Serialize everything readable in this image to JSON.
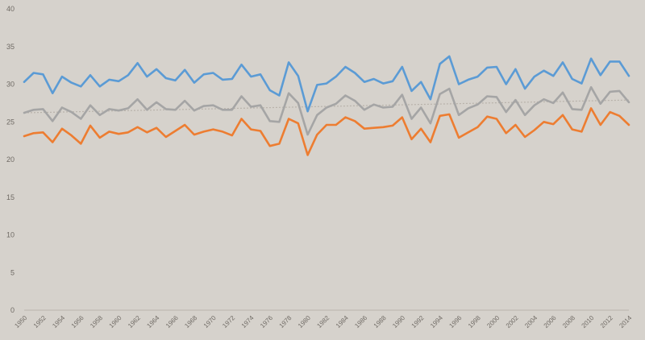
{
  "colors": {
    "background": "#d6d2cc",
    "axis": "#b9b4ad",
    "tick_text": "#6f6a64",
    "trend": "#b8b2aa"
  },
  "chart_data": {
    "type": "line",
    "title": "",
    "xlabel": "",
    "ylabel": "",
    "ylim": [
      0,
      40
    ],
    "y_ticks": [
      0,
      5,
      10,
      15,
      20,
      25,
      30,
      35,
      40
    ],
    "x_ticks": [
      1950,
      1952,
      1954,
      1956,
      1958,
      1960,
      1962,
      1964,
      1966,
      1968,
      1970,
      1972,
      1974,
      1976,
      1978,
      1980,
      1982,
      1984,
      1986,
      1988,
      1990,
      1992,
      1994,
      1996,
      1998,
      2000,
      2002,
      2004,
      2006,
      2008,
      2010,
      2012,
      2014
    ],
    "grid": false,
    "legend": "none",
    "x": [
      1950,
      1951,
      1952,
      1953,
      1954,
      1955,
      1956,
      1957,
      1958,
      1959,
      1960,
      1961,
      1962,
      1963,
      1964,
      1965,
      1966,
      1967,
      1968,
      1969,
      1970,
      1971,
      1972,
      1973,
      1974,
      1975,
      1976,
      1977,
      1978,
      1979,
      1980,
      1981,
      1982,
      1983,
      1984,
      1985,
      1986,
      1987,
      1988,
      1989,
      1990,
      1991,
      1992,
      1993,
      1994,
      1995,
      1996,
      1997,
      1998,
      1999,
      2000,
      2001,
      2002,
      2003,
      2004,
      2005,
      2006,
      2007,
      2008,
      2009,
      2010,
      2011,
      2012,
      2013,
      2014
    ],
    "series": [
      {
        "color": "#5b9bd5",
        "values": [
          30.3,
          31.5,
          31.3,
          28.8,
          31.0,
          30.2,
          29.7,
          31.2,
          29.7,
          30.6,
          30.4,
          31.2,
          32.8,
          31.0,
          32.0,
          30.8,
          30.5,
          31.9,
          30.2,
          31.3,
          31.5,
          30.6,
          30.7,
          32.6,
          31.0,
          31.3,
          29.2,
          28.5,
          32.9,
          31.1,
          26.4,
          29.9,
          30.1,
          31.0,
          32.3,
          31.5,
          30.3,
          30.7,
          30.1,
          30.4,
          32.3,
          29.1,
          30.3,
          28.0,
          32.7,
          33.7,
          30.0,
          30.6,
          31.0,
          32.2,
          32.3,
          30.0,
          32.0,
          29.4,
          31.0,
          31.8,
          31.1,
          32.9,
          30.7,
          30.1,
          33.4,
          31.2,
          33.0,
          33.0,
          31.1
        ]
      },
      {
        "color": "#a5a5a5",
        "values": [
          26.2,
          26.6,
          26.7,
          25.1,
          26.9,
          26.3,
          25.4,
          27.2,
          25.9,
          26.7,
          26.5,
          26.8,
          28.0,
          26.6,
          27.6,
          26.7,
          26.6,
          27.8,
          26.5,
          27.1,
          27.2,
          26.6,
          26.6,
          28.4,
          27.0,
          27.2,
          25.1,
          25.0,
          28.8,
          27.5,
          23.3,
          25.9,
          26.9,
          27.4,
          28.5,
          27.8,
          26.6,
          27.3,
          26.9,
          27.0,
          28.6,
          25.4,
          26.9,
          24.8,
          28.7,
          29.4,
          25.9,
          26.8,
          27.3,
          28.4,
          28.3,
          26.3,
          27.9,
          25.9,
          27.2,
          28.0,
          27.5,
          28.9,
          26.7,
          26.6,
          29.6,
          27.4,
          29.0,
          29.1,
          27.6
        ]
      },
      {
        "color": "#ed7d31",
        "values": [
          23.1,
          23.5,
          23.6,
          22.3,
          24.1,
          23.2,
          22.1,
          24.5,
          22.9,
          23.7,
          23.4,
          23.6,
          24.3,
          23.6,
          24.2,
          23.0,
          23.8,
          24.6,
          23.3,
          23.7,
          24.0,
          23.7,
          23.2,
          25.4,
          24.0,
          23.8,
          21.8,
          22.1,
          25.4,
          24.8,
          20.6,
          23.3,
          24.6,
          24.6,
          25.6,
          25.1,
          24.1,
          24.2,
          24.3,
          24.5,
          25.6,
          22.7,
          24.1,
          22.3,
          25.8,
          26.0,
          22.9,
          23.6,
          24.3,
          25.7,
          25.4,
          23.5,
          24.6,
          23.0,
          23.9,
          25.0,
          24.7,
          25.9,
          24.0,
          23.7,
          26.8,
          24.6,
          26.3,
          25.8,
          24.6
        ]
      }
    ],
    "trendline": {
      "style": "dotted",
      "color": "#b8b2aa",
      "start": [
        1950,
        26.2
      ],
      "end": [
        2014,
        27.9
      ]
    }
  }
}
